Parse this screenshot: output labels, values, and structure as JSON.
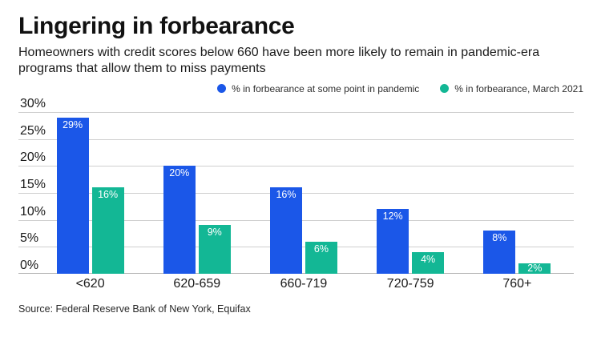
{
  "chart_data": {
    "type": "bar",
    "title": "Lingering in forbearance",
    "subtitle": "Homeowners with credit scores below 660 have been more likely to remain in pandemic-era programs that allow them to miss payments",
    "source": "Source: Federal Reserve Bank of New York, Equifax",
    "categories": [
      "<620",
      "620-659",
      "660-719",
      "720-759",
      "760+"
    ],
    "series": [
      {
        "name": "% in forbearance at some point in pandemic",
        "color": "#1b57e8",
        "values": [
          29,
          20,
          16,
          12,
          8
        ]
      },
      {
        "name": "% in forbearance, March 2021",
        "color": "#13b795",
        "values": [
          16,
          9,
          6,
          4,
          2
        ]
      }
    ],
    "y_ticks": [
      30,
      25,
      20,
      15,
      10,
      5,
      0
    ],
    "y_tick_suffix": "%",
    "bar_value_suffix": "%",
    "ylim": [
      0,
      30
    ],
    "xlabel": "",
    "ylabel": "",
    "grid": true,
    "legend_position": "top-right",
    "colors": {
      "grid": "#cfcfcf",
      "baseline": "#b3b3b3",
      "bar_label": "#ffffff",
      "background": "#ffffff"
    }
  }
}
